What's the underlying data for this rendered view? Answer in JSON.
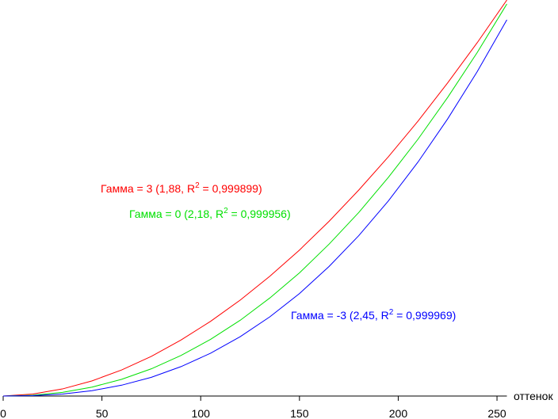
{
  "chart_data": {
    "type": "line",
    "x": [
      0,
      15,
      30,
      45,
      60,
      75,
      90,
      105,
      120,
      135,
      150,
      165,
      180,
      195,
      210,
      225,
      240,
      255
    ],
    "series": [
      {
        "name": "Гамма = 3",
        "color": "#ff0000",
        "values": [
          0,
          0.0049,
          0.0179,
          0.0383,
          0.0659,
          0.1002,
          0.1413,
          0.1886,
          0.2423,
          0.3024,
          0.3686,
          0.4413,
          0.52,
          0.6041,
          0.6942,
          0.7906,
          0.8923,
          1.0
        ]
      },
      {
        "name": "Гамма = 0",
        "color": "#00e000",
        "values": [
          0,
          0.0021,
          0.0093,
          0.0226,
          0.0423,
          0.0687,
          0.1024,
          0.1431,
          0.1913,
          0.2476,
          0.311,
          0.3836,
          0.4634,
          0.5521,
          0.6485,
          0.7539,
          0.8675,
          0.99
        ]
      },
      {
        "name": "Гамма = -3",
        "color": "#0000ff",
        "values": [
          0,
          0.0009,
          0.005,
          0.0135,
          0.0274,
          0.0473,
          0.0742,
          0.1081,
          0.1498,
          0.2,
          0.2587,
          0.3272,
          0.4049,
          0.4926,
          0.5908,
          0.6996,
          0.8193,
          0.95
        ]
      }
    ],
    "annotations": [
      {
        "before": "Гамма = 3 (1,88, R",
        "sup": "2",
        "after": " = 0,999899)"
      },
      {
        "before": "Гамма = 0 (2,18, R",
        "sup": "2",
        "after": " = 0,999956)"
      },
      {
        "before": "Гамма = -3 (2,45, R",
        "sup": "2",
        "after": " = 0,999969)"
      }
    ],
    "xlabel": "оттенок",
    "xlim": [
      0,
      255
    ],
    "xticks": [
      0,
      50,
      100,
      150,
      200,
      250
    ],
    "ylim": [
      0,
      1
    ]
  }
}
